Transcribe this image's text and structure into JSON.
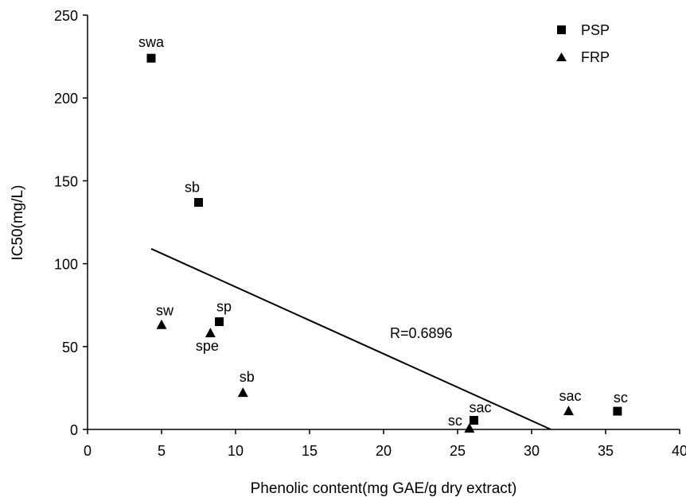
{
  "chart_data": {
    "type": "scatter",
    "xlabel": "Phenolic content(mg GAE/g dry extract)",
    "ylabel": "IC50(mg/L)",
    "xlim": [
      0,
      40
    ],
    "ylim": [
      0,
      250
    ],
    "x_ticks": [
      0,
      5,
      10,
      15,
      20,
      25,
      30,
      35,
      40
    ],
    "y_ticks": [
      0,
      50,
      100,
      150,
      200,
      250
    ],
    "grid": false,
    "legend_position": "top-right",
    "series": [
      {
        "name": "PSP",
        "marker": "square",
        "points": [
          {
            "x": 4.3,
            "y": 224,
            "label": "swa"
          },
          {
            "x": 7.5,
            "y": 137,
            "label": "sb"
          },
          {
            "x": 8.9,
            "y": 65,
            "label": "sp"
          },
          {
            "x": 26.1,
            "y": 5.5,
            "label": "sac"
          },
          {
            "x": 35.8,
            "y": 11,
            "label": "sc"
          }
        ]
      },
      {
        "name": "FRP",
        "marker": "triangle",
        "points": [
          {
            "x": 5.0,
            "y": 63,
            "label": "sw"
          },
          {
            "x": 8.3,
            "y": 58,
            "label": "spe"
          },
          {
            "x": 10.5,
            "y": 22,
            "label": "sb"
          },
          {
            "x": 25.8,
            "y": 0.5,
            "label": "sc"
          },
          {
            "x": 32.5,
            "y": 11,
            "label": "sac"
          }
        ]
      }
    ],
    "trendline": {
      "x": [
        4.3,
        31.3
      ],
      "y": [
        109,
        0
      ]
    },
    "annotation": "R=0.6896",
    "color": "#000000"
  }
}
